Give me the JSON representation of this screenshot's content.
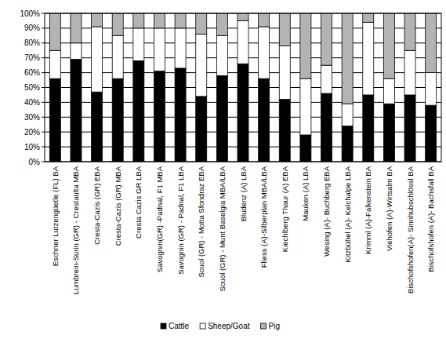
{
  "chart_data": {
    "type": "bar",
    "stacked": true,
    "grid": true,
    "legend": "bottom",
    "categories": [
      "Eschner Lutzengüetle (FL) BA",
      "Lumbrein-Surin (GR) - Crestaulta MBA",
      "Cresta-Cazis (GR) EBA",
      "Cresta-Cazis (GR) MBA",
      "Cresta Cazis GR LBA",
      "Savognin(GR) -Padnal, F1 MBA",
      "Savognin (GR) - Padnal, F1 LBA",
      "Scuol (GR) - Motta Sfondraz EBA",
      "Scuol (GR) - Munt Baselgia MBA/LBA",
      "Bludenz (A) LBA",
      "Fliess (A)-Silberplan MBA/LBA",
      "Kiechlberg Thaur (A) EBA",
      "Mauken (A) LBA",
      "Wesing (A)- Buchberg EBA",
      "Kitzbühel (A)- Kelchalpe LBA",
      "Krimml (A)-Falkenstein BA",
      "Viehofen (A)-Wirtsalm BA",
      "Bischofshofen(A)- Sinnhubschlössl BA",
      "Bischofshofen (A)- Bachsfall BA"
    ],
    "series": [
      {
        "name": "Cattle",
        "color": "#000000",
        "values": [
          56,
          69,
          47,
          56,
          68,
          61,
          63,
          44,
          58,
          66,
          56,
          42,
          18,
          46,
          24,
          45,
          39,
          45,
          38
        ]
      },
      {
        "name": "Sheep/Goat",
        "color": "#ffffff",
        "values": [
          19,
          11,
          44,
          29,
          22,
          29,
          27,
          42,
          27,
          29,
          35,
          36,
          38,
          19,
          15,
          49,
          17,
          30,
          22
        ]
      },
      {
        "name": "Pig",
        "color": "#b3b3b3",
        "values": [
          25,
          20,
          9,
          15,
          10,
          10,
          10,
          14,
          15,
          5,
          9,
          22,
          44,
          35,
          61,
          6,
          44,
          25,
          40
        ]
      }
    ],
    "ylim": [
      0,
      100
    ],
    "yticks": [
      {
        "value": 0,
        "label": "0%"
      },
      {
        "value": 10,
        "label": "10%"
      },
      {
        "value": 20,
        "label": "20%"
      },
      {
        "value": 30,
        "label": "30%"
      },
      {
        "value": 40,
        "label": "40%"
      },
      {
        "value": 50,
        "label": "50%"
      },
      {
        "value": 60,
        "label": "60%"
      },
      {
        "value": 70,
        "label": "70%"
      },
      {
        "value": 80,
        "label": "80%"
      },
      {
        "value": 90,
        "label": "90%"
      },
      {
        "value": 100,
        "label": "100%"
      }
    ]
  }
}
